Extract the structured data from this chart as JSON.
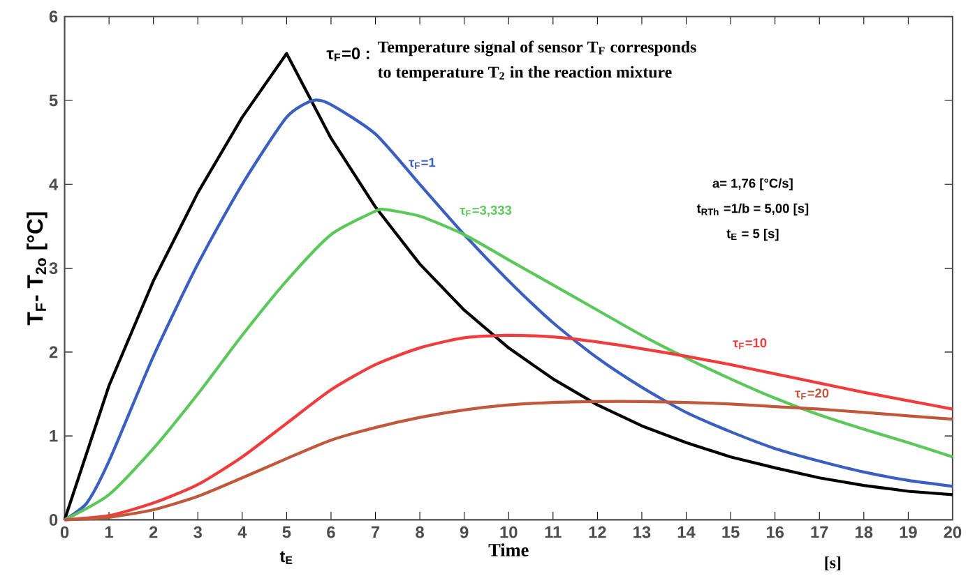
{
  "chart_data": {
    "type": "line",
    "xlabel": "Time",
    "ylabel": "T$_{F}$- T$_{2o}$ [°C]",
    "xlim": [
      0,
      20
    ],
    "ylim": [
      0,
      6
    ],
    "xticks": [
      0,
      1,
      2,
      3,
      4,
      5,
      6,
      7,
      8,
      9,
      10,
      11,
      12,
      13,
      14,
      15,
      16,
      17,
      18,
      19,
      20
    ],
    "yticks": [
      0,
      1,
      2,
      3,
      4,
      5,
      6
    ],
    "grid": false,
    "legend": false,
    "marker": "none",
    "line_style": "solid",
    "annotations": [
      "**Temperature signal of sensor T$_{F}$ corresponds**",
      "**to temperature  T$_{2}$  in the reaction mixture**",
      "a= 1,76 [°C/s]",
      "t$_{RTh}$ =1/b = 5,00 [s]",
      "t$_{E}$ = 5 [s]",
      "t$_{E}$",
      "[s]"
    ],
    "series": [
      {
        "name": "τ$_{F}$=0 :",
        "color": "#000000",
        "x": [
          0,
          1,
          2,
          3,
          4,
          5,
          6,
          7,
          8,
          9,
          10,
          11,
          12,
          13,
          14,
          15,
          16,
          17,
          18,
          19,
          20
        ],
        "values": [
          0,
          1.6,
          2.85,
          3.9,
          4.8,
          5.56,
          4.55,
          3.73,
          3.05,
          2.5,
          2.05,
          1.68,
          1.37,
          1.12,
          0.92,
          0.75,
          0.62,
          0.5,
          0.41,
          0.34,
          0.3
        ]
      },
      {
        "name": "τ$_{F}$=1",
        "color": "#3b5fc0",
        "x": [
          0,
          0.5,
          1,
          2,
          3,
          4,
          5,
          5.6,
          6,
          7,
          8,
          9,
          10,
          11,
          12,
          13,
          14,
          15,
          16,
          17,
          18,
          19,
          20
        ],
        "values": [
          0,
          0.2,
          0.7,
          1.95,
          3.05,
          4.0,
          4.8,
          5.0,
          4.95,
          4.6,
          4.0,
          3.4,
          2.85,
          2.35,
          1.93,
          1.58,
          1.28,
          1.05,
          0.85,
          0.7,
          0.57,
          0.47,
          0.4
        ]
      },
      {
        "name": "τ$_{F}$=3,333",
        "color": "#5cc85c",
        "x": [
          0,
          1,
          2,
          3,
          4,
          5,
          6,
          7,
          7.2,
          8,
          9,
          10,
          11,
          12,
          13,
          14,
          15,
          16,
          17,
          18,
          19,
          20
        ],
        "values": [
          0,
          0.3,
          0.85,
          1.5,
          2.2,
          2.85,
          3.4,
          3.68,
          3.7,
          3.62,
          3.4,
          3.1,
          2.8,
          2.5,
          2.2,
          1.93,
          1.68,
          1.45,
          1.25,
          1.08,
          0.92,
          0.75
        ]
      },
      {
        "name": "τ$_{F}$=10",
        "color": "#f03c3c",
        "x": [
          0,
          1,
          2,
          3,
          4,
          5,
          6,
          7,
          8,
          9,
          10,
          11,
          12,
          13,
          14,
          15,
          16,
          17,
          18,
          19,
          20
        ],
        "values": [
          0,
          0.05,
          0.2,
          0.42,
          0.75,
          1.15,
          1.55,
          1.85,
          2.05,
          2.17,
          2.2,
          2.18,
          2.12,
          2.04,
          1.95,
          1.85,
          1.74,
          1.63,
          1.52,
          1.42,
          1.32
        ]
      },
      {
        "name": "τ$_{F}$=20",
        "color": "#c0583c",
        "x": [
          0,
          1,
          2,
          3,
          4,
          5,
          6,
          7,
          8,
          9,
          10,
          11,
          12,
          13,
          14,
          15,
          16,
          17,
          18,
          19,
          20
        ],
        "values": [
          0,
          0.03,
          0.12,
          0.28,
          0.5,
          0.73,
          0.95,
          1.1,
          1.22,
          1.31,
          1.37,
          1.4,
          1.41,
          1.41,
          1.4,
          1.38,
          1.35,
          1.32,
          1.28,
          1.24,
          1.2
        ]
      }
    ]
  }
}
